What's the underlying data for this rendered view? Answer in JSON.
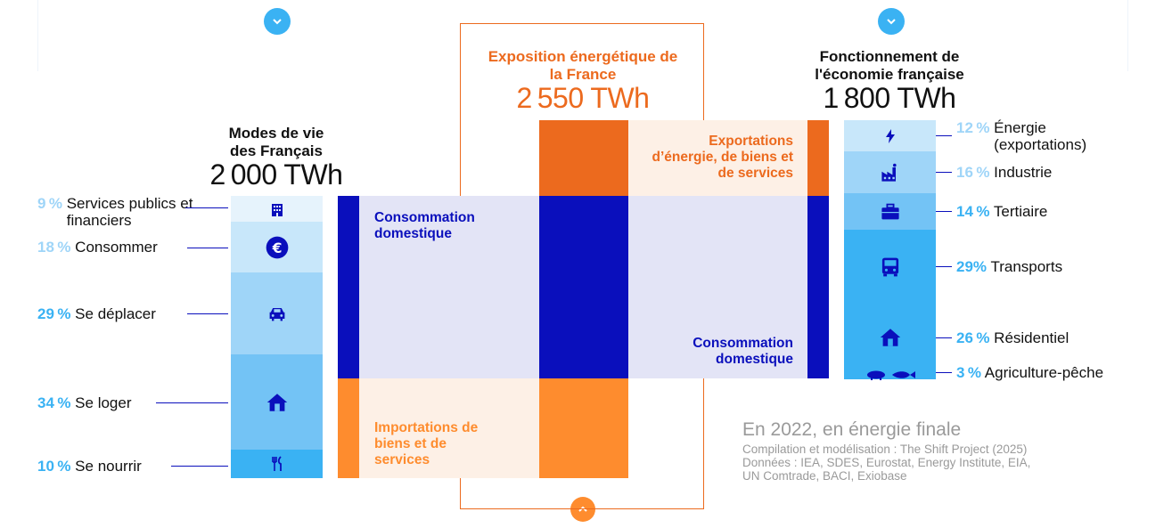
{
  "colors": {
    "dark_blue": "#0a0fbc",
    "light_blue_bg": "#e3e4f6",
    "dark_orange": "#ec6a1e",
    "orange": "#fe8c2e",
    "light_orange_bg": "#fdf0e6",
    "cyan": "#3ab2f3",
    "grey": "#9a9a9a"
  },
  "modes": {
    "title": "Modes de vie des Français",
    "total": "2 000 TWh",
    "items": [
      {
        "pct": "9 %",
        "label": "Services publics et financiers",
        "icon": "building-icon",
        "share": 9
      },
      {
        "pct": "18 %",
        "label": "Consommer",
        "icon": "euro-icon",
        "share": 18
      },
      {
        "pct": "29 %",
        "label": "Se déplacer",
        "icon": "car-icon",
        "share": 29
      },
      {
        "pct": "34 %",
        "label": "Se loger",
        "icon": "house-icon",
        "share": 34
      },
      {
        "pct": "10 %",
        "label": "Se nourrir",
        "icon": "cutlery-icon",
        "share": 10
      }
    ]
  },
  "center": {
    "title": "Exposition énergétique de la France",
    "total": "2 550 TWh"
  },
  "economy": {
    "title": "Fonctionnement de l'économie française",
    "total": "1 800 TWh",
    "items": [
      {
        "pct": "12 %",
        "label": "Énergie (exportations)",
        "icon": "lightning-icon",
        "share": 12
      },
      {
        "pct": "16 %",
        "label": "Industrie",
        "icon": "factory-icon",
        "share": 16
      },
      {
        "pct": "14 %",
        "label": "Tertiaire",
        "icon": "briefcase-icon",
        "share": 14
      },
      {
        "pct": "29%",
        "label": "Transports",
        "icon": "bus-icon",
        "share": 29
      },
      {
        "pct": "26 %",
        "label": "Résidentiel",
        "icon": "house-icon",
        "share": 26
      },
      {
        "pct": "3 %",
        "label": "Agriculture-pêche",
        "icon": "pig-fish-icon",
        "share": 3
      }
    ]
  },
  "flows": {
    "domestic_left": "Consommation domestique",
    "domestic_right": "Consommation domestique",
    "exports": "Exportations d’énergie, de biens et de services",
    "imports": "Importations de biens et de services"
  },
  "note": {
    "heading": "En 2022, en énergie finale",
    "source_1": "Compilation et modélisation : The Shift Project (2025)",
    "source_2": "Données : IEA, SDES, Eurostat, Energy Institute, EIA,",
    "source_3": "UN Comtrade, BACI, Exiobase"
  }
}
